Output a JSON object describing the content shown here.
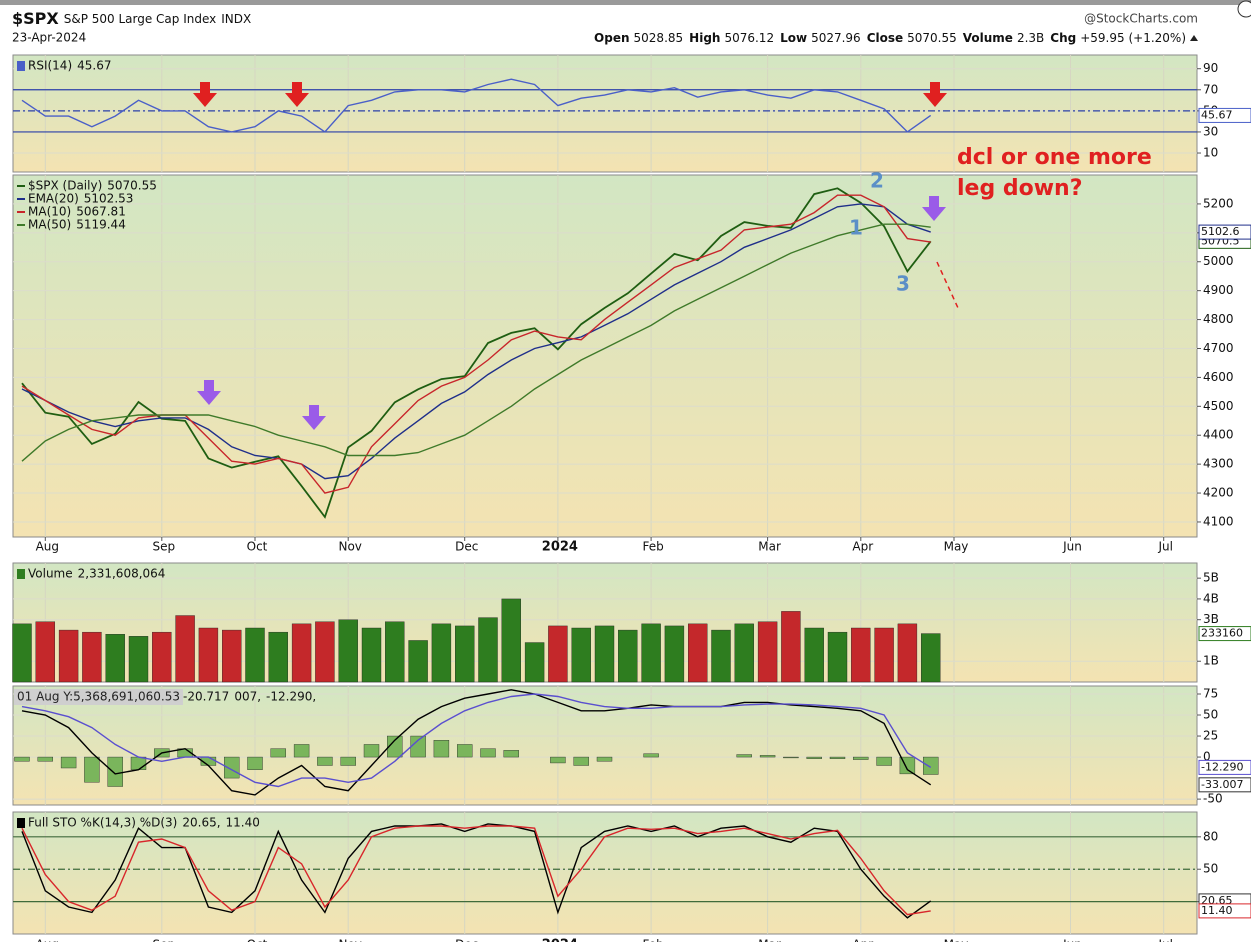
{
  "header": {
    "symbol": "$SPX",
    "name": "S&P 500 Large Cap Index",
    "exchange": "INDX",
    "date": "23-Apr-2024",
    "source": "@StockCharts.com",
    "open_label": "Open",
    "open": 5028.85,
    "high_label": "High",
    "high": 5076.12,
    "low_label": "Low",
    "low": 5027.96,
    "close_label": "Close",
    "close": 5070.55,
    "volume_label": "Volume",
    "volume": "2.3B",
    "chg_label": "Chg",
    "chg": "+59.95 (+1.20%)"
  },
  "annotations": {
    "question": [
      "dcl or one more",
      "leg down?"
    ],
    "waves": [
      "1",
      "2",
      "3"
    ]
  },
  "chart_data": [
    {
      "type": "line",
      "ylim": [
        -8,
        103
      ],
      "yticks": [
        10,
        30,
        50,
        70,
        90
      ],
      "hlines": [
        70,
        50,
        30
      ],
      "series": [
        {
          "name": "RSI(14)",
          "color": "#4a5fc8",
          "tag": "45.67",
          "values": [
            60,
            45,
            45,
            35,
            45,
            60,
            50,
            50,
            35,
            30,
            35,
            50,
            45,
            30,
            55,
            60,
            68,
            70,
            70,
            68,
            75,
            80,
            75,
            55,
            62,
            65,
            70,
            68,
            72,
            63,
            68,
            70,
            65,
            62,
            70,
            68,
            60,
            52,
            30,
            45.67,
            null,
            null,
            null,
            null,
            null,
            null,
            null,
            null,
            null,
            null,
            null
          ]
        }
      ]
    },
    {
      "type": "line",
      "ylim": [
        4048,
        5300
      ],
      "yticks": [
        4100,
        4200,
        4300,
        4400,
        4500,
        4600,
        4700,
        4800,
        4900,
        5000,
        5100,
        5200
      ],
      "categories": [
        null,
        "Aug",
        null,
        null,
        null,
        null,
        "Sep",
        null,
        null,
        null,
        "Oct",
        null,
        null,
        null,
        "Nov",
        null,
        null,
        null,
        null,
        "Dec",
        null,
        null,
        null,
        "2024",
        null,
        null,
        null,
        "Feb",
        null,
        null,
        null,
        null,
        "Mar",
        null,
        null,
        null,
        "Apr",
        null,
        null,
        null,
        "May",
        null,
        null,
        null,
        null,
        "Jun",
        null,
        null,
        null,
        "Jul",
        null
      ],
      "series": [
        {
          "name": "$SPX (Daily)",
          "color": "#1f5e12",
          "tag": "5070.5",
          "values": [
            4580,
            4478,
            4464,
            4370,
            4405,
            4515,
            4457,
            4450,
            4320,
            4288,
            4308,
            4327,
            4224,
            4117,
            4358,
            4415,
            4514,
            4559,
            4594,
            4604,
            4719,
            4754,
            4770,
            4697,
            4784,
            4840,
            4891,
            4959,
            5027,
            5005,
            5089,
            5137,
            5124,
            5117,
            5234,
            5254,
            5204,
            5123,
            4967,
            5070.55,
            null,
            null,
            null,
            null,
            null,
            null,
            null,
            null,
            null,
            null,
            null
          ]
        },
        {
          "name": "EMA(20)",
          "color": "#1f2f8a",
          "tag": "5102.6",
          "values": [
            4560,
            4520,
            4480,
            4450,
            4430,
            4450,
            4460,
            4460,
            4420,
            4360,
            4330,
            4320,
            4300,
            4250,
            4260,
            4320,
            4390,
            4450,
            4510,
            4550,
            4610,
            4660,
            4700,
            4720,
            4740,
            4780,
            4820,
            4870,
            4920,
            4960,
            5000,
            5050,
            5080,
            5110,
            5150,
            5190,
            5200,
            5190,
            5130,
            5102.53,
            null,
            null,
            null,
            null,
            null,
            null,
            null,
            null,
            null,
            null,
            null
          ]
        },
        {
          "name": "MA(10)",
          "color": "#c8262b",
          "values": [
            4570,
            4520,
            4470,
            4420,
            4400,
            4460,
            4470,
            4470,
            4390,
            4310,
            4300,
            4320,
            4300,
            4200,
            4220,
            4360,
            4440,
            4520,
            4570,
            4600,
            4660,
            4730,
            4760,
            4740,
            4730,
            4800,
            4860,
            4920,
            4980,
            5010,
            5040,
            5110,
            5120,
            5130,
            5170,
            5230,
            5230,
            5190,
            5080,
            5067.81,
            null,
            null,
            null,
            null,
            null,
            null,
            null,
            null,
            null,
            null,
            null
          ]
        },
        {
          "name": "MA(50)",
          "color": "#3f7a2a",
          "values": [
            4310,
            4380,
            4420,
            4450,
            4460,
            4470,
            4470,
            4470,
            4470,
            4450,
            4430,
            4400,
            4380,
            4360,
            4330,
            4330,
            4330,
            4340,
            4370,
            4400,
            4450,
            4500,
            4560,
            4610,
            4660,
            4700,
            4740,
            4780,
            4830,
            4870,
            4910,
            4950,
            4990,
            5030,
            5060,
            5090,
            5110,
            5130,
            5130,
            5119.44,
            null,
            null,
            null,
            null,
            null,
            null,
            null,
            null,
            null,
            null,
            null
          ]
        }
      ]
    },
    {
      "type": "bar",
      "ylim": [
        0,
        5730000000
      ],
      "yticks": [
        {
          "value": 5000000000,
          "label": "5B"
        },
        {
          "value": 4000000000,
          "label": "4B"
        },
        {
          "value": 3000000000,
          "label": "3B"
        },
        {
          "value": 1000000000,
          "label": "1B"
        }
      ],
      "series": [
        {
          "name": "Volume",
          "legend_value": "2,331,608,064",
          "color": "#2e7d1f",
          "tag": "233160",
          "values": [
            2800000000,
            2900000000,
            2500000000,
            2400000000,
            2300000000,
            2200000000,
            2400000000,
            3200000000,
            2600000000,
            2500000000,
            2600000000,
            2400000000,
            2800000000,
            2900000000,
            3000000000,
            2600000000,
            2900000000,
            2000000000,
            2800000000,
            2700000000,
            3100000000,
            4000000000,
            1900000000,
            2700000000,
            2600000000,
            2700000000,
            2500000000,
            2800000000,
            2700000000,
            2800000000,
            2500000000,
            2800000000,
            2900000000,
            3400000000,
            2600000000,
            2400000000,
            2600000000,
            2600000000,
            2800000000,
            2331608064,
            null,
            null,
            null,
            null,
            null,
            null,
            null,
            null,
            null,
            null,
            null
          ],
          "colors": [
            "#2e7d1f",
            "#c4282b",
            "#c4282b",
            "#c4282b",
            "#2e7d1f",
            "#2e7d1f",
            "#c4282b",
            "#c4282b",
            "#c4282b",
            "#c4282b",
            "#2e7d1f",
            "#2e7d1f",
            "#c4282b",
            "#c4282b",
            "#2e7d1f",
            "#2e7d1f",
            "#2e7d1f",
            "#2e7d1f",
            "#2e7d1f",
            "#2e7d1f",
            "#2e7d1f",
            "#2e7d1f",
            "#2e7d1f",
            "#c4282b",
            "#2e7d1f",
            "#2e7d1f",
            "#2e7d1f",
            "#2e7d1f",
            "#2e7d1f",
            "#c4282b",
            "#2e7d1f",
            "#2e7d1f",
            "#c4282b",
            "#c4282b",
            "#2e7d1f",
            "#2e7d1f",
            "#c4282b",
            "#c4282b",
            "#c4282b",
            "#2e7d1f",
            null,
            null,
            null,
            null,
            null,
            null,
            null,
            null,
            null,
            null,
            null
          ]
        }
      ]
    },
    {
      "type": "line",
      "ylim": [
        -57,
        84.5
      ],
      "yticks": [
        75,
        50,
        25,
        0,
        -50
      ],
      "tooltip": "01 Aug Y:5,368,691,060.53",
      "series": [
        {
          "type": "bar",
          "legend_value": "-20.717",
          "color": "#7ab55c",
          "values": [
            -5,
            -5,
            -13,
            -30,
            -35,
            -15,
            10,
            10,
            -10,
            -25,
            -15,
            10,
            15,
            -10,
            -10,
            15,
            25,
            25,
            20,
            15,
            10,
            8,
            0,
            -7,
            -10,
            -5,
            0,
            4,
            0,
            0,
            0,
            3,
            2,
            -1,
            -2,
            -2,
            -3,
            -10,
            -20,
            -20.717,
            null,
            null,
            null,
            null,
            null,
            null,
            null,
            null,
            null,
            null,
            null
          ]
        },
        {
          "legend_value": "007,",
          "color": "#000000",
          "tag": "-33.007",
          "values": [
            55,
            50,
            35,
            5,
            -20,
            -15,
            5,
            10,
            -10,
            -40,
            -45,
            -25,
            -10,
            -35,
            -40,
            -10,
            20,
            45,
            60,
            70,
            75,
            80,
            75,
            65,
            55,
            55,
            58,
            62,
            60,
            60,
            60,
            65,
            65,
            62,
            60,
            58,
            55,
            40,
            -15,
            -33.007,
            null,
            null,
            null,
            null,
            null,
            null,
            null,
            null,
            null,
            null,
            null
          ]
        },
        {
          "legend_value": "-12.290,",
          "color": "#5a4fcf",
          "tag": "-12.290",
          "values": [
            60,
            55,
            48,
            35,
            15,
            0,
            -5,
            0,
            0,
            -15,
            -30,
            -35,
            -25,
            -25,
            -30,
            -25,
            -5,
            20,
            40,
            55,
            65,
            72,
            75,
            72,
            65,
            60,
            58,
            58,
            60,
            60,
            60,
            62,
            63,
            63,
            62,
            60,
            58,
            50,
            5,
            -12.29,
            null,
            null,
            null,
            null,
            null,
            null,
            null,
            null,
            null,
            null,
            null
          ]
        }
      ]
    },
    {
      "type": "line",
      "ylim": [
        -10,
        103
      ],
      "yticks": [
        80,
        50,
        20
      ],
      "hlines": [
        80,
        50,
        20
      ],
      "series": [
        {
          "name": "Full STO %K(14,3) %D(3)",
          "legend_value": "20.65,",
          "color": "#000000",
          "tag": "20.65",
          "values": [
            85,
            30,
            15,
            10,
            40,
            88,
            70,
            70,
            15,
            10,
            30,
            85,
            40,
            10,
            60,
            85,
            90,
            90,
            92,
            85,
            92,
            90,
            85,
            10,
            70,
            85,
            90,
            85,
            90,
            80,
            88,
            90,
            80,
            75,
            88,
            85,
            50,
            25,
            5,
            20.65,
            null,
            null,
            null,
            null,
            null,
            null,
            null,
            null,
            null,
            null,
            null
          ]
        },
        {
          "legend_value": "11.40",
          "color": "#d8262b",
          "tag": "11.40",
          "values": [
            88,
            45,
            20,
            12,
            25,
            75,
            78,
            70,
            30,
            12,
            20,
            70,
            55,
            15,
            40,
            80,
            88,
            90,
            90,
            88,
            90,
            90,
            88,
            25,
            50,
            80,
            88,
            87,
            88,
            83,
            85,
            88,
            83,
            78,
            83,
            86,
            60,
            30,
            8,
            11.4,
            null,
            null,
            null,
            null,
            null,
            null,
            null,
            null,
            null,
            null,
            null
          ]
        }
      ]
    }
  ]
}
